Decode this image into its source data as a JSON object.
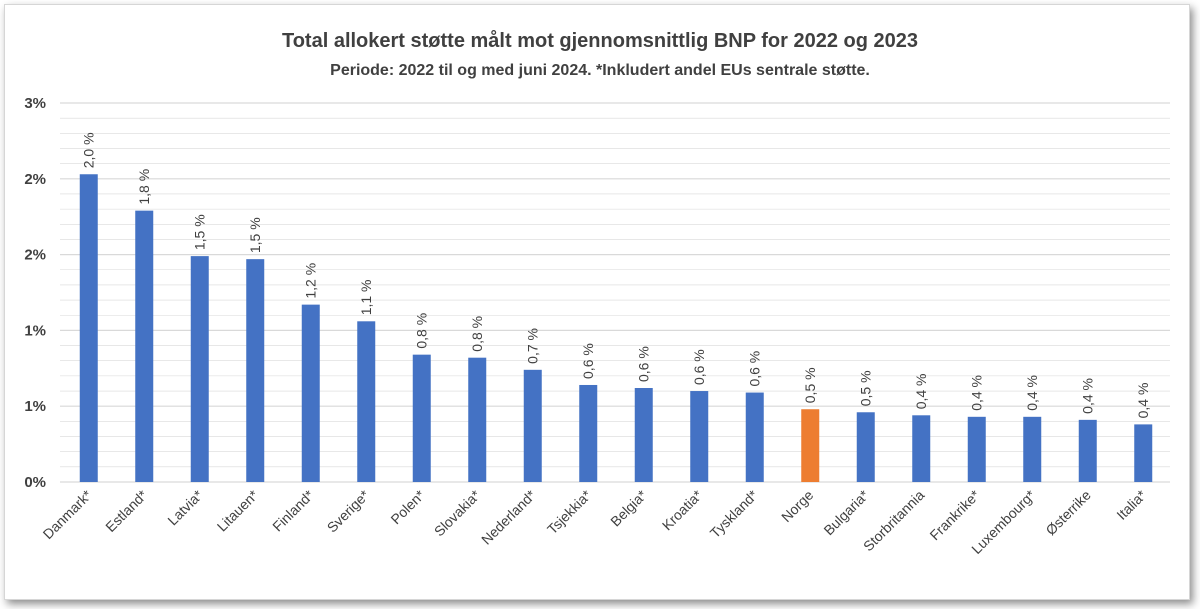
{
  "chart_data": {
    "type": "bar",
    "title": "Total allokert støtte målt mot gjennomsnittlig BNP for 2022 og 2023",
    "subtitle": "Periode: 2022 til og med juni 2024. *Inkludert andel EUs sentrale støtte.",
    "categories": [
      "Danmark*",
      "Estland*",
      "Latvia*",
      "Litauen*",
      "Finland*",
      "Sverige*",
      "Polen*",
      "Slovakia*",
      "Nederland*",
      "Tsjekkia*",
      "Belgia*",
      "Kroatia*",
      "Tyskland*",
      "Norge",
      "Bulgaria*",
      "Storbritannia",
      "Frankrike*",
      "Luxembourg*",
      "Østerrike",
      "Italia*"
    ],
    "values": [
      2.03,
      1.79,
      1.49,
      1.47,
      1.17,
      1.06,
      0.84,
      0.82,
      0.74,
      0.64,
      0.62,
      0.6,
      0.59,
      0.48,
      0.46,
      0.44,
      0.43,
      0.43,
      0.41,
      0.38
    ],
    "value_labels": [
      "2,0 %",
      "1,8 %",
      "1,5 %",
      "1,5 %",
      "1,2 %",
      "1,1 %",
      "0,8 %",
      "0,8 %",
      "0,7 %",
      "0,6 %",
      "0,6 %",
      "0,6 %",
      "0,6 %",
      "0,5 %",
      "0,5 %",
      "0,4 %",
      "0,4 %",
      "0,4 %",
      "0,4 %",
      "0,4 %"
    ],
    "ylim": [
      0,
      2.5
    ],
    "yticks": [
      0,
      0.5,
      1.0,
      1.5,
      2.0,
      2.5
    ],
    "ytick_labels": [
      "0%",
      "1%",
      "1%",
      "2%",
      "2%",
      "3%"
    ],
    "highlight_category": "Norge",
    "colors": {
      "default": "#4472c4",
      "highlight": "#ed7d31",
      "grid": "#d9d9d9"
    },
    "xlabel": "",
    "ylabel": "",
    "grid": true
  }
}
